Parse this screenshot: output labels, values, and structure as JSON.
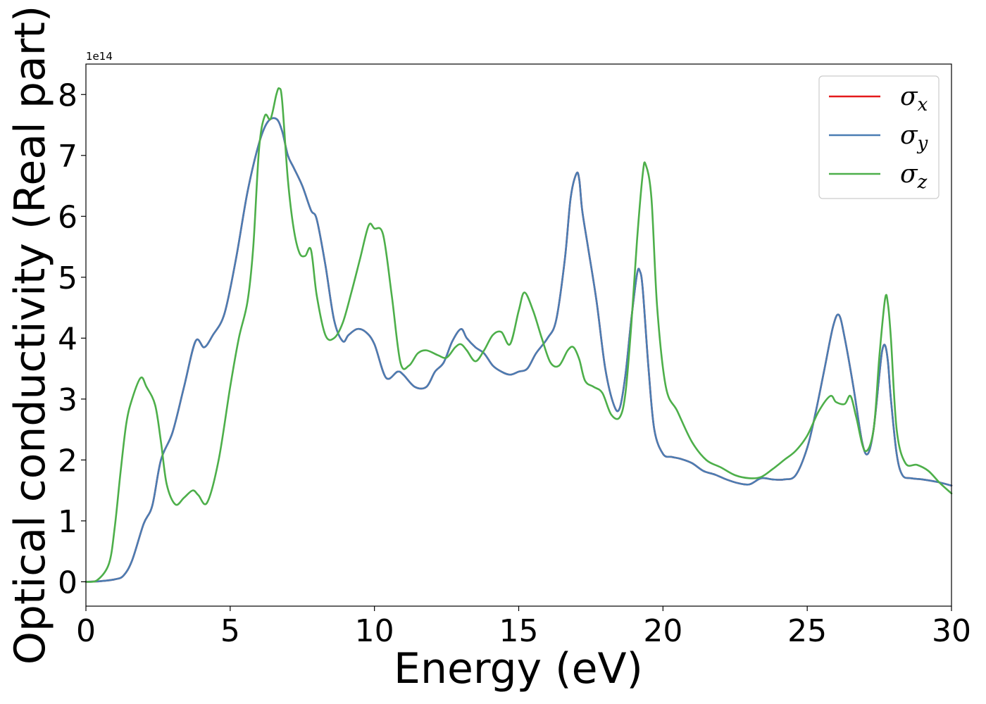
{
  "chart_data": {
    "type": "line",
    "title": "",
    "xlabel": "Energy (eV)",
    "ylabel": "Optical conductivity (Real part)",
    "y_offset_label": "1e14",
    "xlim": [
      0,
      30
    ],
    "ylim": [
      -0.4,
      8.5
    ],
    "x_ticks": [
      0,
      5,
      10,
      15,
      20,
      25,
      30
    ],
    "y_ticks": [
      0,
      1,
      2,
      3,
      4,
      5,
      6,
      7,
      8
    ],
    "grid": false,
    "legend_position": "top-right",
    "series": [
      {
        "name": "σx",
        "legend_symbol": "σ",
        "legend_subscript": "x",
        "color": "#e41a1c",
        "x": [
          0,
          0.5,
          1.0,
          1.3,
          1.6,
          2.0,
          2.3,
          2.6,
          3.0,
          3.4,
          3.8,
          4.1,
          4.4,
          4.8,
          5.2,
          5.6,
          6.0,
          6.3,
          6.6,
          6.8,
          7.0,
          7.2,
          7.5,
          7.8,
          8.0,
          8.3,
          8.6,
          8.9,
          9.1,
          9.4,
          9.7,
          10.0,
          10.4,
          10.8,
          11.0,
          11.4,
          11.8,
          12.1,
          12.4,
          12.7,
          13.0,
          13.2,
          13.5,
          13.8,
          14.1,
          14.4,
          14.7,
          15.0,
          15.3,
          15.6,
          16.0,
          16.3,
          16.6,
          16.8,
          17.0,
          17.1,
          17.2,
          17.4,
          17.7,
          18.0,
          18.3,
          18.5,
          18.7,
          18.9,
          19.1,
          19.2,
          19.3,
          19.5,
          19.7,
          20.0,
          20.3,
          20.6,
          21.0,
          21.4,
          21.8,
          22.2,
          22.6,
          23.0,
          23.4,
          23.8,
          24.2,
          24.6,
          25.0,
          25.3,
          25.6,
          25.9,
          26.1,
          26.3,
          26.6,
          26.9,
          27.1,
          27.3,
          27.5,
          27.6,
          27.7,
          27.8,
          27.9,
          28.1,
          28.3,
          28.6,
          29.0,
          29.5,
          30.0
        ],
        "values": [
          0,
          0.01,
          0.04,
          0.1,
          0.35,
          0.95,
          1.25,
          2.0,
          2.45,
          3.2,
          3.95,
          3.85,
          4.05,
          4.4,
          5.3,
          6.4,
          7.2,
          7.55,
          7.6,
          7.4,
          7.0,
          6.8,
          6.5,
          6.1,
          5.95,
          5.2,
          4.3,
          3.95,
          4.05,
          4.15,
          4.1,
          3.9,
          3.35,
          3.45,
          3.4,
          3.2,
          3.2,
          3.45,
          3.6,
          3.95,
          4.15,
          4.0,
          3.85,
          3.75,
          3.55,
          3.45,
          3.4,
          3.45,
          3.5,
          3.75,
          4.0,
          4.3,
          5.3,
          6.3,
          6.7,
          6.6,
          6.1,
          5.5,
          4.6,
          3.5,
          2.9,
          2.85,
          3.4,
          4.3,
          5.05,
          5.1,
          4.8,
          3.5,
          2.5,
          2.1,
          2.05,
          2.02,
          1.95,
          1.82,
          1.76,
          1.68,
          1.62,
          1.6,
          1.7,
          1.68,
          1.68,
          1.75,
          2.2,
          2.8,
          3.5,
          4.2,
          4.38,
          4.0,
          3.2,
          2.3,
          2.1,
          2.5,
          3.4,
          3.8,
          3.88,
          3.6,
          3.0,
          2.1,
          1.75,
          1.7,
          1.68,
          1.64,
          1.58
        ]
      },
      {
        "name": "σy",
        "legend_symbol": "σ",
        "legend_subscript": "y",
        "color": "#4a7db3",
        "x": [
          0,
          0.5,
          1.0,
          1.3,
          1.6,
          2.0,
          2.3,
          2.6,
          3.0,
          3.4,
          3.8,
          4.1,
          4.4,
          4.8,
          5.2,
          5.6,
          6.0,
          6.3,
          6.6,
          6.8,
          7.0,
          7.2,
          7.5,
          7.8,
          8.0,
          8.3,
          8.6,
          8.9,
          9.1,
          9.4,
          9.7,
          10.0,
          10.4,
          10.8,
          11.0,
          11.4,
          11.8,
          12.1,
          12.4,
          12.7,
          13.0,
          13.2,
          13.5,
          13.8,
          14.1,
          14.4,
          14.7,
          15.0,
          15.3,
          15.6,
          16.0,
          16.3,
          16.6,
          16.8,
          17.0,
          17.1,
          17.2,
          17.4,
          17.7,
          18.0,
          18.3,
          18.5,
          18.7,
          18.9,
          19.1,
          19.2,
          19.3,
          19.5,
          19.7,
          20.0,
          20.3,
          20.6,
          21.0,
          21.4,
          21.8,
          22.2,
          22.6,
          23.0,
          23.4,
          23.8,
          24.2,
          24.6,
          25.0,
          25.3,
          25.6,
          25.9,
          26.1,
          26.3,
          26.6,
          26.9,
          27.1,
          27.3,
          27.5,
          27.6,
          27.7,
          27.8,
          27.9,
          28.1,
          28.3,
          28.6,
          29.0,
          29.5,
          30.0
        ],
        "values": [
          0,
          0.01,
          0.04,
          0.1,
          0.35,
          0.95,
          1.25,
          2.0,
          2.45,
          3.2,
          3.95,
          3.85,
          4.05,
          4.4,
          5.3,
          6.4,
          7.2,
          7.55,
          7.6,
          7.4,
          7.0,
          6.8,
          6.5,
          6.1,
          5.95,
          5.2,
          4.3,
          3.95,
          4.05,
          4.15,
          4.1,
          3.9,
          3.35,
          3.45,
          3.4,
          3.2,
          3.2,
          3.45,
          3.6,
          3.95,
          4.15,
          4.0,
          3.85,
          3.75,
          3.55,
          3.45,
          3.4,
          3.45,
          3.5,
          3.75,
          4.0,
          4.3,
          5.3,
          6.3,
          6.7,
          6.6,
          6.1,
          5.5,
          4.6,
          3.5,
          2.9,
          2.85,
          3.4,
          4.3,
          5.05,
          5.1,
          4.8,
          3.5,
          2.5,
          2.1,
          2.05,
          2.02,
          1.95,
          1.82,
          1.76,
          1.68,
          1.62,
          1.6,
          1.7,
          1.68,
          1.68,
          1.75,
          2.2,
          2.8,
          3.5,
          4.2,
          4.38,
          4.0,
          3.2,
          2.3,
          2.1,
          2.5,
          3.4,
          3.8,
          3.88,
          3.6,
          3.0,
          2.1,
          1.75,
          1.7,
          1.68,
          1.64,
          1.58
        ]
      },
      {
        "name": "σz",
        "legend_symbol": "σ",
        "legend_subscript": "z",
        "color": "#4daf4a",
        "x": [
          0,
          0.4,
          0.8,
          1.0,
          1.2,
          1.4,
          1.6,
          1.9,
          2.1,
          2.4,
          2.6,
          2.8,
          3.1,
          3.4,
          3.7,
          3.9,
          4.2,
          4.6,
          5.0,
          5.3,
          5.6,
          5.8,
          6.0,
          6.2,
          6.4,
          6.6,
          6.7,
          6.8,
          7.0,
          7.2,
          7.4,
          7.6,
          7.8,
          8.0,
          8.3,
          8.6,
          8.9,
          9.2,
          9.5,
          9.8,
          10.0,
          10.3,
          10.6,
          10.9,
          11.2,
          11.5,
          11.8,
          12.2,
          12.5,
          12.8,
          13.0,
          13.2,
          13.5,
          13.8,
          14.1,
          14.4,
          14.7,
          15.0,
          15.2,
          15.5,
          15.8,
          16.1,
          16.4,
          16.7,
          16.9,
          17.1,
          17.3,
          17.6,
          17.9,
          18.2,
          18.5,
          18.7,
          18.9,
          19.1,
          19.3,
          19.4,
          19.6,
          19.8,
          20.1,
          20.5,
          21.0,
          21.5,
          22.0,
          22.5,
          23.0,
          23.4,
          23.8,
          24.2,
          24.6,
          25.0,
          25.4,
          25.8,
          26.0,
          26.3,
          26.5,
          26.7,
          27.0,
          27.3,
          27.5,
          27.7,
          27.8,
          27.9,
          28.1,
          28.4,
          28.8,
          29.2,
          29.6,
          30.0
        ],
        "values": [
          0,
          0.03,
          0.3,
          0.9,
          1.8,
          2.6,
          3.0,
          3.35,
          3.2,
          2.9,
          2.3,
          1.6,
          1.27,
          1.38,
          1.5,
          1.42,
          1.3,
          2.0,
          3.2,
          4.0,
          4.6,
          5.5,
          7.1,
          7.65,
          7.6,
          8.0,
          8.1,
          7.9,
          6.6,
          5.8,
          5.4,
          5.35,
          5.45,
          4.7,
          4.05,
          4.0,
          4.25,
          4.75,
          5.3,
          5.85,
          5.8,
          5.7,
          4.7,
          3.6,
          3.55,
          3.75,
          3.8,
          3.72,
          3.68,
          3.85,
          3.9,
          3.8,
          3.62,
          3.8,
          4.05,
          4.1,
          3.9,
          4.45,
          4.75,
          4.45,
          4.0,
          3.6,
          3.55,
          3.8,
          3.85,
          3.65,
          3.3,
          3.2,
          3.1,
          2.75,
          2.7,
          3.1,
          4.2,
          5.6,
          6.7,
          6.85,
          6.3,
          4.5,
          3.2,
          2.8,
          2.3,
          2.0,
          1.88,
          1.75,
          1.7,
          1.72,
          1.85,
          2.0,
          2.15,
          2.4,
          2.8,
          3.05,
          2.95,
          2.92,
          3.05,
          2.7,
          2.15,
          2.5,
          3.7,
          4.65,
          4.55,
          4.0,
          2.5,
          1.95,
          1.92,
          1.82,
          1.62,
          1.45
        ]
      }
    ]
  }
}
